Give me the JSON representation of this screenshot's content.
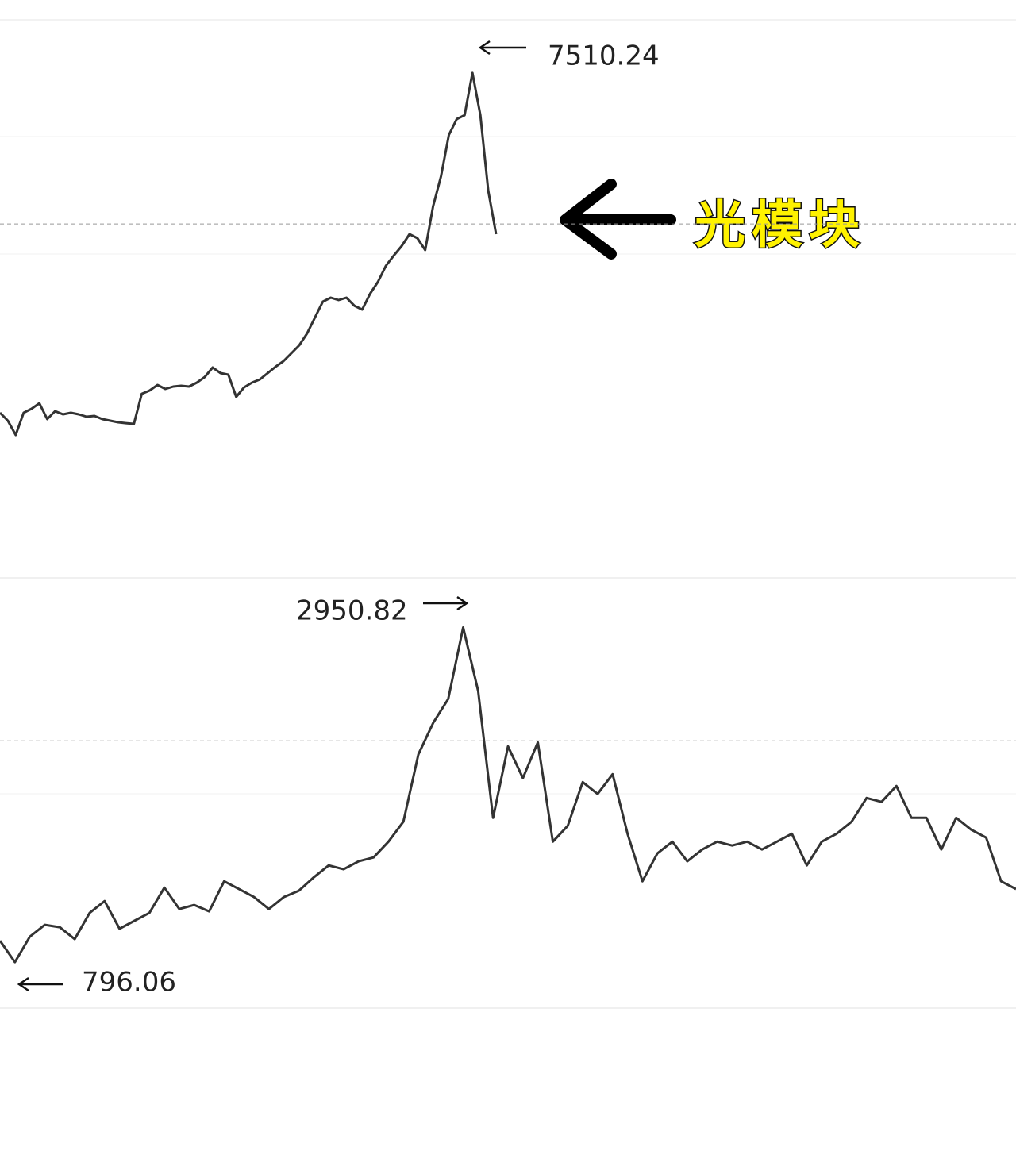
{
  "chart_data": [
    {
      "type": "line",
      "color": "#333333",
      "ylim": [
        0,
        8300
      ],
      "reference_line": 5162,
      "peak_label": "7510.24",
      "callout": "光模块",
      "values": [
        2223,
        2100,
        1877,
        2223,
        2285,
        2371,
        2124,
        2248,
        2198,
        2223,
        2198,
        2161,
        2174,
        2124,
        2100,
        2075,
        2062,
        2050,
        2519,
        2569,
        2655,
        2594,
        2631,
        2643,
        2631,
        2692,
        2779,
        2927,
        2841,
        2816,
        2470,
        2618,
        2692,
        2742,
        2841,
        2939,
        3026,
        3149,
        3273,
        3458,
        3705,
        3952,
        4014,
        3977,
        4014,
        3890,
        3829,
        4076,
        4261,
        4508,
        4668,
        4817,
        5002,
        4940,
        4755,
        5434,
        5903,
        6546,
        6793,
        6854,
        7510.24,
        6854,
        5681,
        5002
      ]
    },
    {
      "type": "line",
      "color": "#333333",
      "ylim": [
        500,
        3260
      ],
      "reference_line": 2221,
      "peak_label": "2950.82",
      "low_label": "796.06",
      "values": [
        934,
        796.06,
        960,
        1036,
        1021,
        944,
        1113,
        1189,
        1011,
        1062,
        1113,
        1276,
        1138,
        1164,
        1123,
        1317,
        1266,
        1215,
        1138,
        1215,
        1256,
        1342,
        1419,
        1394,
        1445,
        1470,
        1572,
        1700,
        2134,
        2338,
        2491,
        2950.82,
        2542,
        1725,
        2185,
        1981,
        2211,
        1572,
        1674,
        1955,
        1879,
        2006,
        1623,
        1317,
        1496,
        1572,
        1445,
        1521,
        1572,
        1547,
        1572,
        1521,
        1572,
        1623,
        1419,
        1572,
        1623,
        1700,
        1853,
        1828,
        1930,
        1725,
        1725,
        1521,
        1725,
        1649,
        1598,
        1317,
        1266
      ]
    }
  ]
}
